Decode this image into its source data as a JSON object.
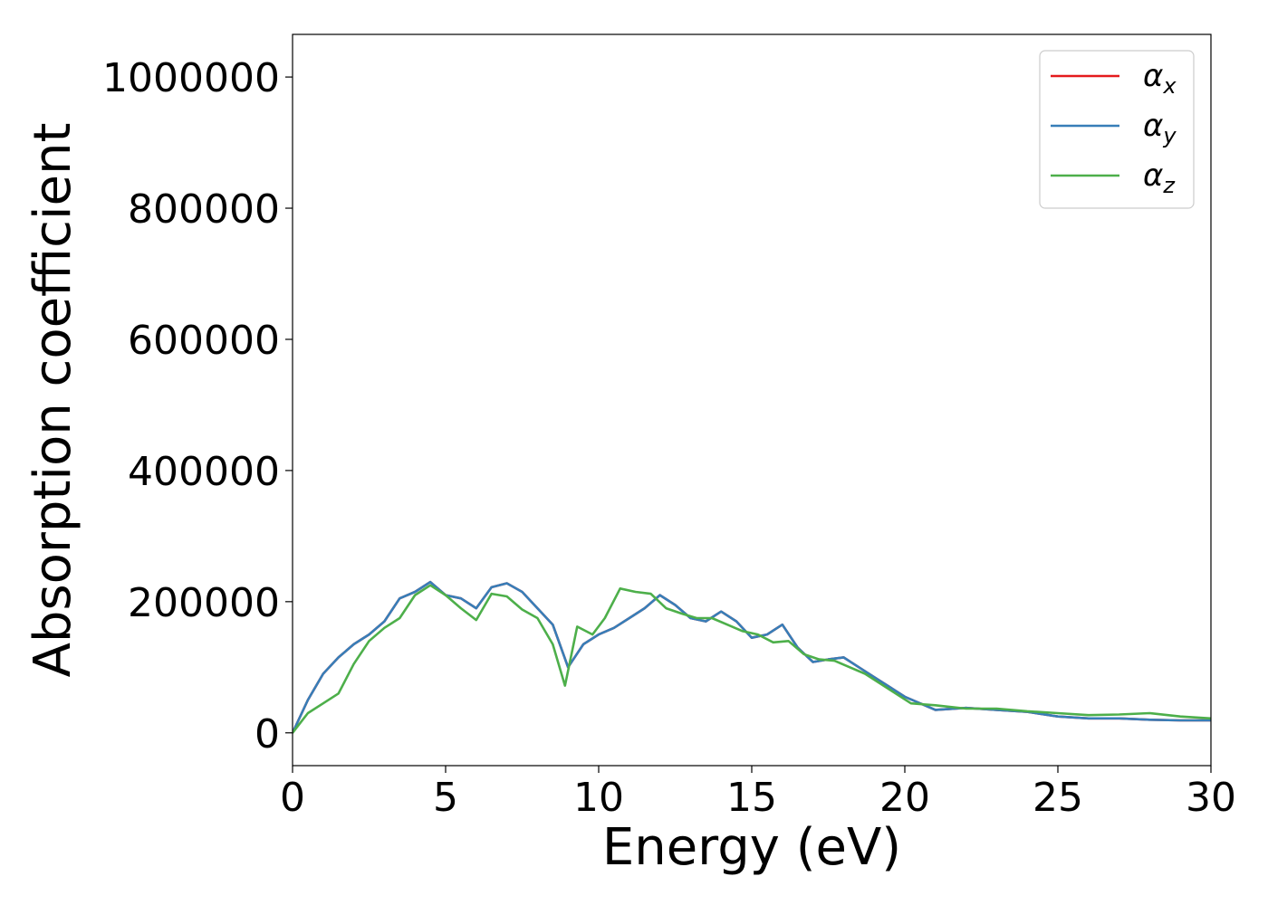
{
  "chart_data": {
    "type": "line",
    "xlabel": "Energy (eV)",
    "ylabel": "Absorption coefficient",
    "xlim": [
      0,
      30
    ],
    "ylim": [
      -50000,
      1065000
    ],
    "xticks": [
      0,
      5,
      10,
      15,
      20,
      25,
      30
    ],
    "yticks": [
      0,
      200000,
      400000,
      600000,
      800000,
      1000000
    ],
    "grid": false,
    "legend_position": "top-right",
    "series": [
      {
        "name": "α",
        "subscript": "x",
        "color": "#e41a1c",
        "x": [
          0,
          0.5,
          1,
          1.5,
          2,
          2.5,
          3,
          3.5,
          4,
          4.5,
          5,
          5.5,
          6,
          6.5,
          7,
          7.5,
          8,
          8.5,
          9,
          9.5,
          10,
          10.5,
          11,
          11.5,
          12,
          12.5,
          13,
          13.5,
          14,
          14.5,
          15,
          15.5,
          16,
          16.5,
          17,
          17.5,
          18,
          18.5,
          19,
          19.5,
          20,
          21,
          22,
          23,
          24,
          25,
          26,
          27,
          28,
          29,
          30
        ],
        "y": [
          0,
          50000,
          90000,
          115000,
          135000,
          150000,
          170000,
          205000,
          215000,
          230000,
          210000,
          205000,
          190000,
          222000,
          228000,
          215000,
          190000,
          165000,
          100000,
          135000,
          150000,
          160000,
          175000,
          190000,
          210000,
          195000,
          175000,
          170000,
          185000,
          170000,
          145000,
          150000,
          165000,
          130000,
          108000,
          112000,
          115000,
          100000,
          85000,
          70000,
          55000,
          35000,
          38000,
          35000,
          32000,
          25000,
          22000,
          22000,
          20000,
          19000,
          19000
        ]
      },
      {
        "name": "α",
        "subscript": "y",
        "color": "#377eb8",
        "x": [
          0,
          0.5,
          1,
          1.5,
          2,
          2.5,
          3,
          3.5,
          4,
          4.5,
          5,
          5.5,
          6,
          6.5,
          7,
          7.5,
          8,
          8.5,
          9,
          9.5,
          10,
          10.5,
          11,
          11.5,
          12,
          12.5,
          13,
          13.5,
          14,
          14.5,
          15,
          15.5,
          16,
          16.5,
          17,
          17.5,
          18,
          18.5,
          19,
          19.5,
          20,
          21,
          22,
          23,
          24,
          25,
          26,
          27,
          28,
          29,
          30
        ],
        "y": [
          0,
          50000,
          90000,
          115000,
          135000,
          150000,
          170000,
          205000,
          215000,
          230000,
          210000,
          205000,
          190000,
          222000,
          228000,
          215000,
          190000,
          165000,
          100000,
          135000,
          150000,
          160000,
          175000,
          190000,
          210000,
          195000,
          175000,
          170000,
          185000,
          170000,
          145000,
          150000,
          165000,
          130000,
          108000,
          112000,
          115000,
          100000,
          85000,
          70000,
          55000,
          35000,
          38000,
          35000,
          32000,
          25000,
          22000,
          22000,
          20000,
          19000,
          19000
        ]
      },
      {
        "name": "α",
        "subscript": "z",
        "color": "#4daf4a",
        "x": [
          0,
          0.5,
          1,
          1.5,
          2,
          2.5,
          3,
          3.5,
          4,
          4.5,
          5,
          5.5,
          6,
          6.5,
          7,
          7.5,
          8,
          8.5,
          8.9,
          9.3,
          9.8,
          10.2,
          10.7,
          11.2,
          11.7,
          12.2,
          12.7,
          13.2,
          13.7,
          14.2,
          14.7,
          15.2,
          15.7,
          16.2,
          16.7,
          17.2,
          17.7,
          18.2,
          18.7,
          19.2,
          19.7,
          20.2,
          21,
          22,
          23,
          24,
          25,
          26,
          27,
          28,
          29,
          30
        ],
        "y": [
          0,
          30000,
          45000,
          60000,
          105000,
          140000,
          160000,
          175000,
          210000,
          225000,
          210000,
          190000,
          172000,
          212000,
          208000,
          188000,
          175000,
          135000,
          72000,
          162000,
          150000,
          175000,
          220000,
          215000,
          212000,
          190000,
          182000,
          175000,
          175000,
          165000,
          155000,
          150000,
          138000,
          140000,
          120000,
          112000,
          110000,
          100000,
          90000,
          75000,
          60000,
          45000,
          42000,
          37000,
          37000,
          33000,
          30000,
          27000,
          28000,
          30000,
          25000,
          22000
        ]
      }
    ]
  }
}
